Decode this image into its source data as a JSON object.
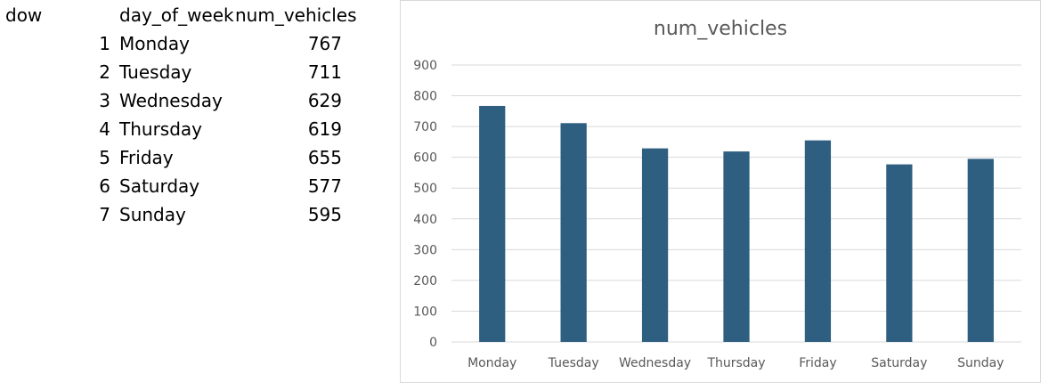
{
  "table": {
    "headers": [
      "dow",
      "day_of_week",
      "num_vehicles"
    ],
    "rows": [
      {
        "dow": "1",
        "day_of_week": "Monday",
        "num_vehicles": "767"
      },
      {
        "dow": "2",
        "day_of_week": "Tuesday",
        "num_vehicles": "711"
      },
      {
        "dow": "3",
        "day_of_week": "Wednesday",
        "num_vehicles": "629"
      },
      {
        "dow": "4",
        "day_of_week": "Thursday",
        "num_vehicles": "619"
      },
      {
        "dow": "5",
        "day_of_week": "Friday",
        "num_vehicles": "655"
      },
      {
        "dow": "6",
        "day_of_week": "Saturday",
        "num_vehicles": "577"
      },
      {
        "dow": "7",
        "day_of_week": "Sunday",
        "num_vehicles": "595"
      }
    ]
  },
  "chart_data": {
    "type": "bar",
    "title": "num_vehicles",
    "categories": [
      "Monday",
      "Tuesday",
      "Wednesday",
      "Thursday",
      "Friday",
      "Saturday",
      "Sunday"
    ],
    "values": [
      767,
      711,
      629,
      619,
      655,
      577,
      595
    ],
    "ylim": [
      0,
      900
    ],
    "yticks": [
      0,
      100,
      200,
      300,
      400,
      500,
      600,
      700,
      800,
      900
    ],
    "grid": true,
    "legend": "none",
    "bar_color": "#2e5f80",
    "grid_color": "#d9d9d9"
  }
}
